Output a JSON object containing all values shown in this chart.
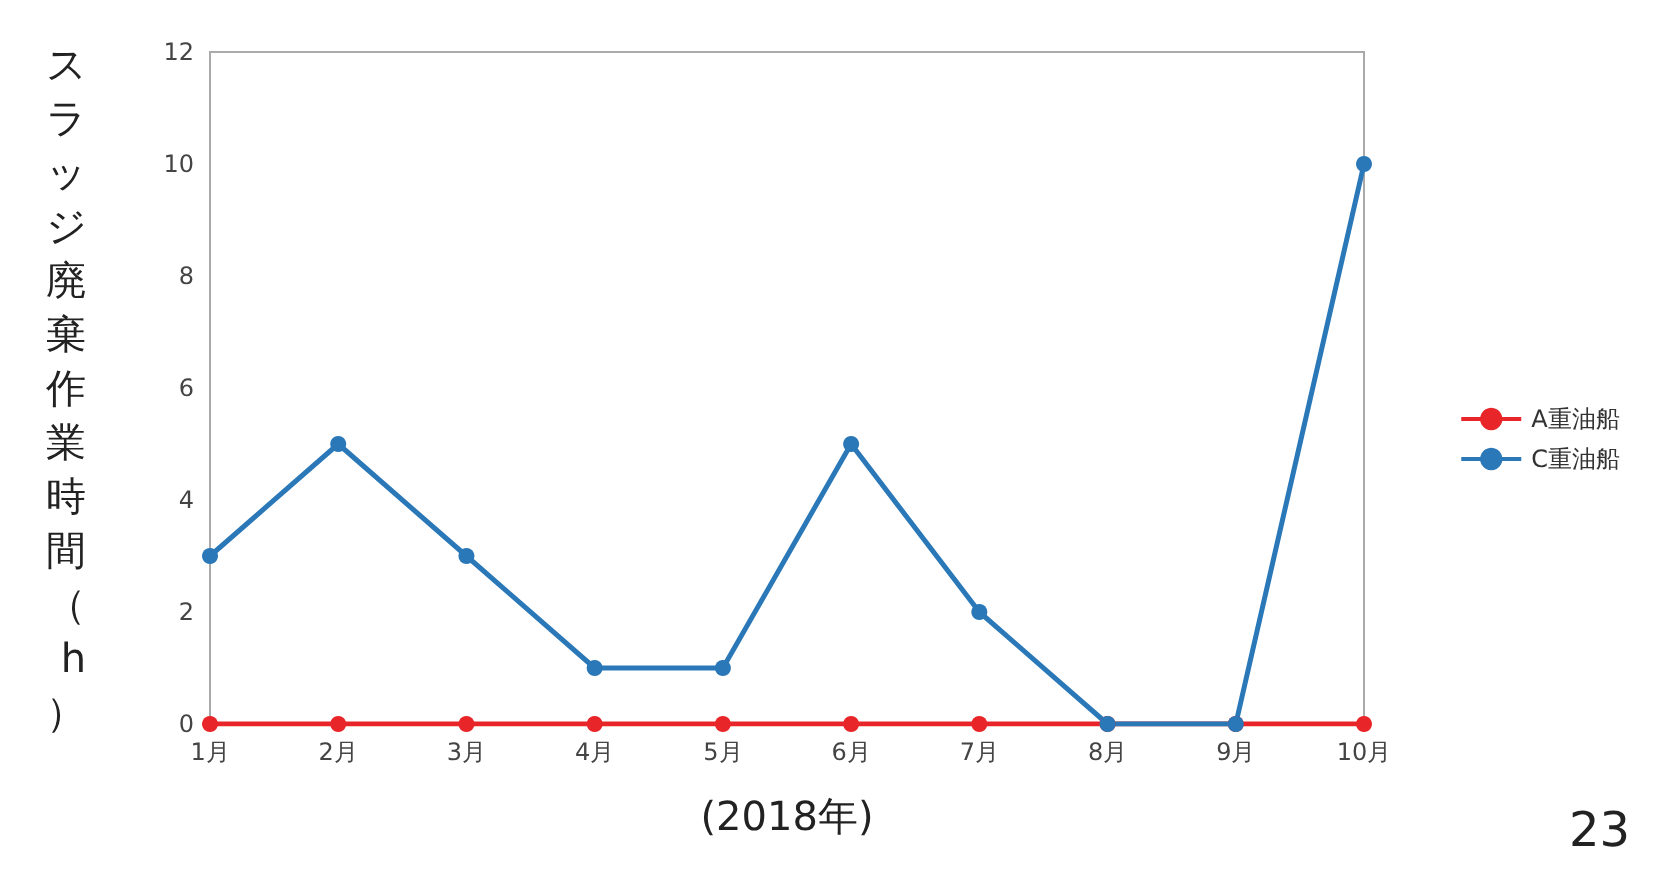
{
  "chart_data": {
    "type": "line",
    "ylabel": "スラッジ廃棄作業時間（h）",
    "xlabel": "(2018年)",
    "categories": [
      "1月",
      "2月",
      "3月",
      "4月",
      "5月",
      "6月",
      "7月",
      "8月",
      "9月",
      "10月"
    ],
    "series": [
      {
        "name": "A重油船",
        "color": "#e8262a",
        "values": [
          0,
          0,
          0,
          0,
          0,
          0,
          0,
          0,
          0,
          0
        ]
      },
      {
        "name": "C重油船",
        "color": "#2a78b8",
        "values": [
          3,
          5,
          3,
          1,
          1,
          5,
          2,
          0,
          0,
          10
        ]
      }
    ],
    "ylim": [
      0,
      12
    ],
    "yticks": [
      0,
      2,
      4,
      6,
      8,
      10,
      12
    ],
    "grid": false,
    "legend": "right",
    "marker": "circle",
    "line_style": "solid",
    "annotations": [
      "23"
    ]
  }
}
